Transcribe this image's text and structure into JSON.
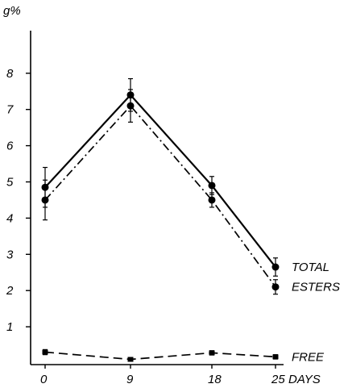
{
  "chart_data": {
    "type": "line",
    "ylabel": "g%",
    "xlabel": "DAYS",
    "x": [
      0,
      9,
      18,
      25
    ],
    "x_tick_labels": [
      "0",
      "9",
      "18",
      "25"
    ],
    "ylim": [
      0,
      9
    ],
    "y_ticks": [
      1,
      2,
      3,
      4,
      5,
      6,
      7,
      8
    ],
    "y_tick_labels": [
      "1",
      "2",
      "3",
      "4",
      "5",
      "6",
      "7",
      "8"
    ],
    "grid": false,
    "legend": "direct labels at right end of each line",
    "series": [
      {
        "name": "TOTAL",
        "line_style": "solid",
        "marker": "circle",
        "values": [
          4.85,
          7.4,
          4.9,
          2.65
        ],
        "error": [
          0.55,
          0.45,
          0.25,
          0.25
        ]
      },
      {
        "name": "ESTERS",
        "line_style": "dash-dot",
        "marker": "circle",
        "values": [
          4.5,
          7.1,
          4.5,
          2.1
        ],
        "error": [
          0.55,
          0.45,
          0.2,
          0.2
        ]
      },
      {
        "name": "FREE",
        "line_style": "dashed",
        "marker": "square",
        "values": [
          0.3,
          0.1,
          0.28,
          0.17
        ],
        "error": [
          0.07,
          0.05,
          0.06,
          0.06
        ]
      }
    ]
  }
}
